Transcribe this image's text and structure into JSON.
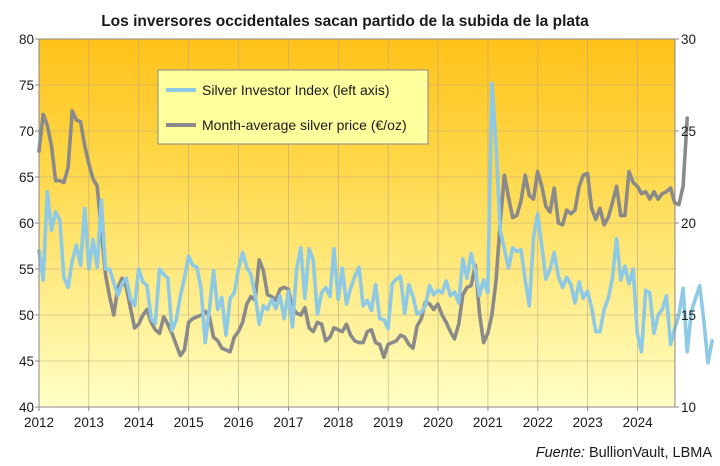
{
  "chart_data": {
    "type": "line",
    "title": "Los inversores occidentales sacan partido de la subida de la plata",
    "source_prefix": "Fuente:",
    "source_text": " BullionVault, LBMA",
    "x_ticks": [
      "2012",
      "2013",
      "2014",
      "2015",
      "2016",
      "2017",
      "2018",
      "2019",
      "2020",
      "2021",
      "2022",
      "2023",
      "2024"
    ],
    "xlim": [
      2012,
      2024.75
    ],
    "y_left": {
      "ticks": [
        40,
        45,
        50,
        55,
        60,
        65,
        70,
        75,
        80
      ],
      "lim": [
        40,
        80
      ]
    },
    "y_right": {
      "ticks": [
        10,
        15,
        20,
        25,
        30
      ],
      "lim": [
        10,
        30
      ]
    },
    "legend_position": "top-left",
    "grid": true,
    "colors": {
      "bg_top": "#ffc21a",
      "bg_bottom": "#ffffc6",
      "legend_bg": "#ffff9e"
    },
    "series": [
      {
        "name": "Silver Investor Index (left axis)",
        "axis": "left",
        "color": "#8ec9e6",
        "x_start": 2012,
        "x_step": 0.0833,
        "values": [
          57.0,
          53.8,
          63.4,
          59.2,
          61.2,
          60.3,
          54.1,
          53.0,
          55.9,
          57.6,
          55.4,
          61.6,
          55.0,
          58.2,
          55.2,
          62.5,
          55.0,
          55.0,
          53.5,
          52.1,
          53.4,
          54.0,
          51.8,
          51.0,
          55.0,
          53.6,
          53.2,
          49.6,
          49.1,
          55.0,
          54.4,
          54.0,
          48.3,
          49.4,
          52.0,
          54.0,
          56.4,
          55.4,
          55.2,
          52.8,
          47.0,
          50.6,
          54.8,
          50.6,
          51.9,
          47.8,
          51.8,
          52.4,
          55.0,
          56.8,
          55.2,
          54.4,
          52.2,
          49.0,
          51.0,
          50.6,
          51.7,
          50.7,
          52.1,
          49.6,
          52.6,
          48.7,
          55.0,
          57.3,
          51.8,
          57.2,
          56.0,
          50.1,
          52.4,
          53.0,
          52.0,
          57.2,
          51.7,
          55.1,
          51.2,
          52.9,
          54.2,
          55.2,
          51.0,
          51.6,
          50.5,
          53.3,
          49.6,
          49.5,
          48.5,
          53.4,
          53.9,
          54.2,
          50.2,
          53.3,
          52.0,
          50.1,
          50.3,
          51.0,
          53.2,
          52.2,
          52.7,
          52.4,
          53.7,
          52.1,
          52.5,
          51.3,
          56.1,
          54.0,
          56.7,
          54.8,
          52.1,
          53.8,
          52.4,
          75.2,
          68.4,
          59.2,
          57.2,
          55.1,
          57.3,
          56.9,
          57.1,
          53.8,
          51.0,
          58.4,
          61.0,
          57.5,
          53.9,
          55.0,
          56.8,
          54.2,
          53.0,
          54.1,
          53.3,
          51.3,
          53.6,
          51.8,
          52.6,
          50.8,
          48.2,
          48.2,
          50.6,
          51.8,
          54.0,
          58.3,
          53.8,
          55.3,
          53.4,
          55.0,
          48.0,
          46.0,
          52.7,
          52.4,
          48.0,
          50.0,
          50.6,
          52.1,
          46.8,
          48.5,
          50.0,
          52.9,
          46.0,
          50.4,
          51.8,
          53.2,
          49.4,
          44.8,
          47.2
        ]
      },
      {
        "name": "Month-average silver price (€/oz)",
        "axis": "right",
        "color": "#8a8a8a",
        "x_start": 2012,
        "x_step": 0.0833,
        "values": [
          23.9,
          25.9,
          25.3,
          24.2,
          22.3,
          22.3,
          22.2,
          23.0,
          26.1,
          25.6,
          25.5,
          24.2,
          23.2,
          22.4,
          22.0,
          19.6,
          17.2,
          16.0,
          15.0,
          16.5,
          17.0,
          16.5,
          15.4,
          14.3,
          14.5,
          15.0,
          15.3,
          14.6,
          14.2,
          14.0,
          14.9,
          14.5,
          14.0,
          13.4,
          12.8,
          13.1,
          14.6,
          14.8,
          14.9,
          15.0,
          15.2,
          14.9,
          13.8,
          13.6,
          13.2,
          13.1,
          13.0,
          13.8,
          14.1,
          14.6,
          15.6,
          16.0,
          15.8,
          18.0,
          17.4,
          16.1,
          16.0,
          15.8,
          16.4,
          16.5,
          16.4,
          15.4,
          15.1,
          15.0,
          15.4,
          14.3,
          14.1,
          14.6,
          14.5,
          13.6,
          13.8,
          14.3,
          14.2,
          14.1,
          14.5,
          13.9,
          13.6,
          13.5,
          13.5,
          14.1,
          14.2,
          13.5,
          13.4,
          12.7,
          13.4,
          13.5,
          13.6,
          13.9,
          13.8,
          13.4,
          13.2,
          14.4,
          14.8,
          15.7,
          15.6,
          15.3,
          15.6,
          15.0,
          14.6,
          14.1,
          13.7,
          14.5,
          16.1,
          16.5,
          16.6,
          17.7,
          15.1,
          13.5,
          14.0,
          15.0,
          16.9,
          20.0,
          22.6,
          21.4,
          20.3,
          20.4,
          21.2,
          22.6,
          21.5,
          21.3,
          22.8,
          22.0,
          20.9,
          20.6,
          21.9,
          20.0,
          19.9,
          20.7,
          20.5,
          20.7,
          22.0,
          22.6,
          22.7,
          20.8,
          20.2,
          20.8,
          19.9,
          20.3,
          21.1,
          22.0,
          20.4,
          20.4,
          22.8,
          22.2,
          22.0,
          21.6,
          21.7,
          21.3,
          21.7,
          21.3,
          21.6,
          21.7,
          21.9,
          21.1,
          21.0,
          22.0,
          25.7
        ]
      }
    ]
  }
}
